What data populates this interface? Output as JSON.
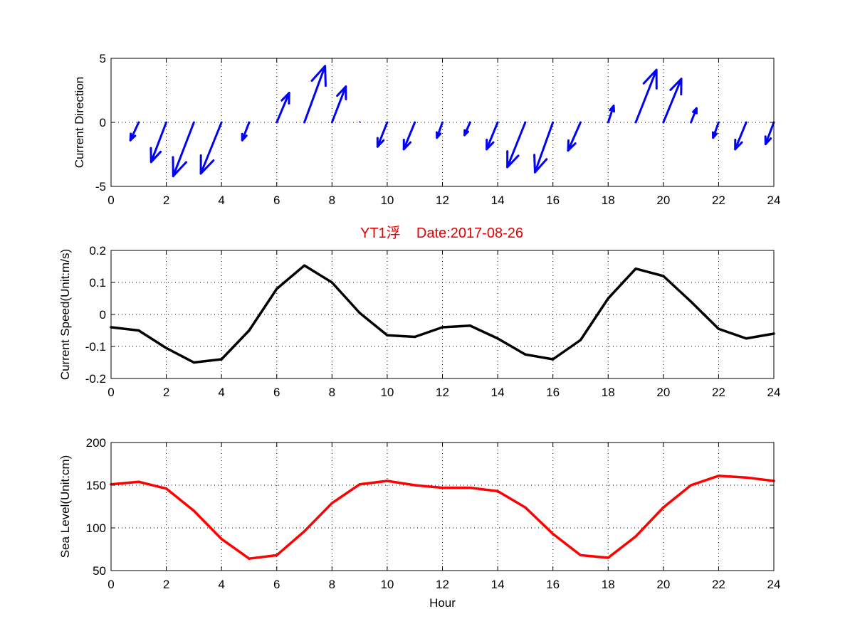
{
  "chart_data": [
    {
      "type": "quiver",
      "ylabel": "Current Direction",
      "xlim": [
        0,
        24
      ],
      "ylim": [
        -5,
        5
      ],
      "xticks": [
        0,
        2,
        4,
        6,
        8,
        10,
        12,
        14,
        16,
        18,
        20,
        22,
        24
      ],
      "yticks": [
        -5,
        0,
        5
      ],
      "grid": true,
      "color": "#0000ff",
      "baseline_y": 0,
      "vectors": [
        {
          "x": 1,
          "u": -0.3,
          "v": -1.4
        },
        {
          "x": 2,
          "u": -0.55,
          "v": -3.1
        },
        {
          "x": 3,
          "u": -0.75,
          "v": -4.2
        },
        {
          "x": 4,
          "u": -0.75,
          "v": -4.0
        },
        {
          "x": 5,
          "u": -0.25,
          "v": -1.4
        },
        {
          "x": 6,
          "u": 0.45,
          "v": 2.3
        },
        {
          "x": 7,
          "u": 0.75,
          "v": 4.4
        },
        {
          "x": 8,
          "u": 0.5,
          "v": 2.8
        },
        {
          "x": 9,
          "u": 0.02,
          "v": 0.1
        },
        {
          "x": 10,
          "u": -0.35,
          "v": -1.9
        },
        {
          "x": 11,
          "u": -0.4,
          "v": -2.1
        },
        {
          "x": 12,
          "u": -0.2,
          "v": -1.2
        },
        {
          "x": 13,
          "u": -0.2,
          "v": -1.0
        },
        {
          "x": 14,
          "u": -0.4,
          "v": -2.1
        },
        {
          "x": 15,
          "u": -0.65,
          "v": -3.5
        },
        {
          "x": 16,
          "u": -0.65,
          "v": -3.9
        },
        {
          "x": 17,
          "u": -0.45,
          "v": -2.2
        },
        {
          "x": 18,
          "u": 0.2,
          "v": 1.3
        },
        {
          "x": 19,
          "u": 0.75,
          "v": 4.1
        },
        {
          "x": 20,
          "u": 0.65,
          "v": 3.4
        },
        {
          "x": 21,
          "u": 0.2,
          "v": 1.1
        },
        {
          "x": 22,
          "u": -0.2,
          "v": -1.2
        },
        {
          "x": 23,
          "u": -0.4,
          "v": -2.1
        },
        {
          "x": 24,
          "u": -0.3,
          "v": -1.7
        }
      ]
    },
    {
      "type": "line",
      "title": "YT1浮    Date:2017-08-26",
      "ylabel": "Current Speed(Unit:m/s)",
      "xlim": [
        0,
        24
      ],
      "ylim": [
        -0.2,
        0.2
      ],
      "xticks": [
        0,
        2,
        4,
        6,
        8,
        10,
        12,
        14,
        16,
        18,
        20,
        22,
        24
      ],
      "yticks": [
        -0.2,
        -0.1,
        0,
        0.1,
        0.2
      ],
      "ytick_labels": [
        "-0.2",
        "-0.1",
        "0",
        "0.1",
        "0.2"
      ],
      "grid": true,
      "color": "#000000",
      "title_color": "#e00000",
      "x": [
        0,
        1,
        2,
        3,
        4,
        5,
        6,
        7,
        8,
        9,
        10,
        11,
        12,
        13,
        14,
        15,
        16,
        17,
        18,
        19,
        20,
        21,
        22,
        23,
        24
      ],
      "y": [
        -0.04,
        -0.05,
        -0.105,
        -0.15,
        -0.14,
        -0.05,
        0.08,
        0.153,
        0.1,
        0.005,
        -0.065,
        -0.07,
        -0.04,
        -0.035,
        -0.075,
        -0.125,
        -0.14,
        -0.08,
        0.05,
        0.143,
        0.12,
        0.04,
        -0.045,
        -0.075,
        -0.06
      ]
    },
    {
      "type": "line",
      "xlabel": "Hour",
      "ylabel": "Sea Level(Unit:cm)",
      "xlim": [
        0,
        24
      ],
      "ylim": [
        50,
        200
      ],
      "xticks": [
        0,
        2,
        4,
        6,
        8,
        10,
        12,
        14,
        16,
        18,
        20,
        22,
        24
      ],
      "yticks": [
        50,
        100,
        150,
        200
      ],
      "grid": true,
      "color": "#ff0000",
      "x": [
        0,
        1,
        2,
        3,
        4,
        5,
        6,
        7,
        8,
        9,
        10,
        11,
        12,
        13,
        14,
        15,
        16,
        17,
        18,
        19,
        20,
        21,
        22,
        23,
        24
      ],
      "y": [
        151,
        154,
        146,
        120,
        87,
        64,
        68,
        96,
        129,
        151,
        155,
        150,
        147,
        147,
        143,
        124,
        93,
        68,
        65,
        90,
        124,
        150,
        161,
        159,
        155
      ]
    }
  ]
}
